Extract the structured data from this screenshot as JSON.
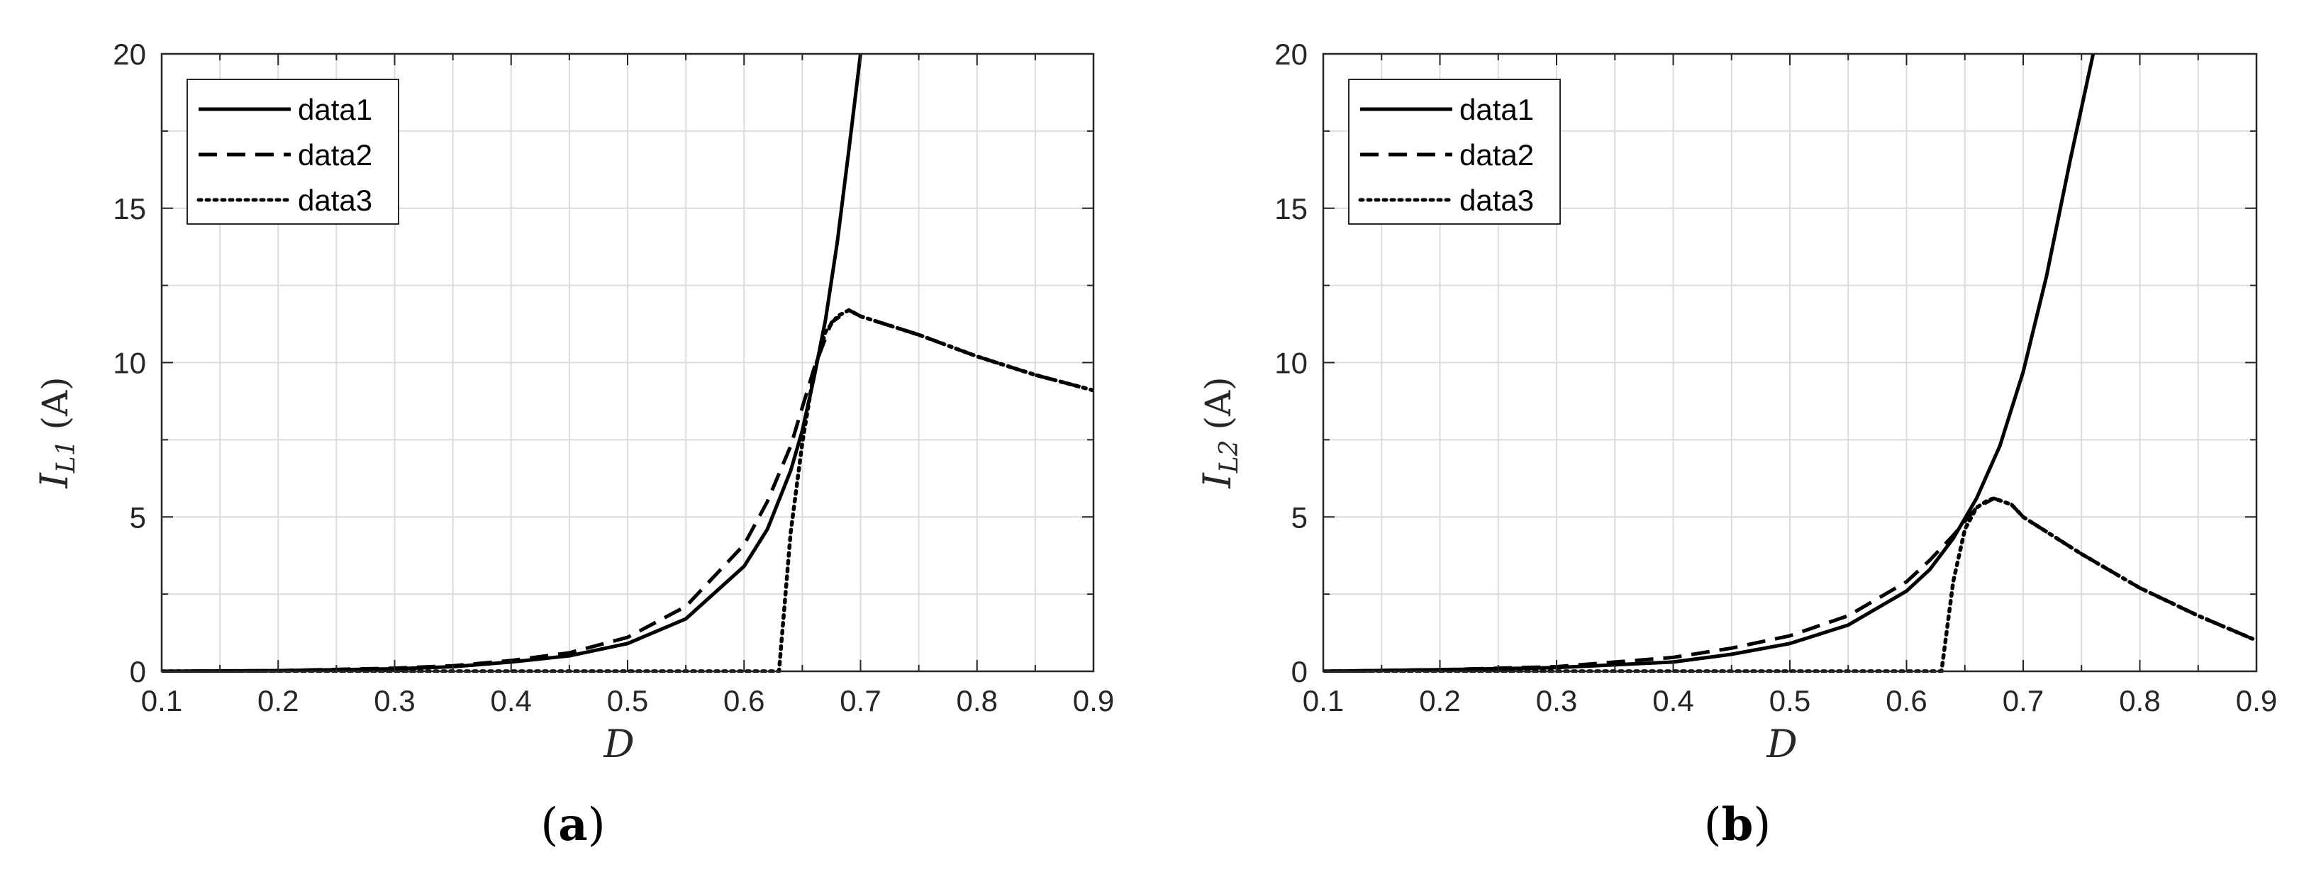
{
  "chart_data": [
    {
      "type": "line",
      "panel_label": "a",
      "xlabel": "D",
      "ylabel_main": "I",
      "ylabel_sub": "L1",
      "ylabel_unit": "(A)",
      "xlim": [
        0.1,
        0.9
      ],
      "ylim": [
        0,
        20
      ],
      "xticks": [
        "0.1",
        "0.2",
        "0.3",
        "0.4",
        "0.5",
        "0.6",
        "0.7",
        "0.8",
        "0.9"
      ],
      "yticks": [
        "0",
        "5",
        "10",
        "15",
        "20"
      ],
      "grid": true,
      "legend_position": "top-left",
      "series": [
        {
          "name": "data1",
          "style": "solid",
          "x": [
            0.1,
            0.2,
            0.3,
            0.35,
            0.4,
            0.45,
            0.5,
            0.55,
            0.6,
            0.62,
            0.64,
            0.65,
            0.66,
            0.67,
            0.68,
            0.69,
            0.7
          ],
          "y": [
            0.0,
            0.02,
            0.08,
            0.15,
            0.3,
            0.5,
            0.9,
            1.7,
            3.4,
            4.6,
            6.5,
            7.8,
            9.5,
            11.4,
            13.9,
            16.9,
            20.0
          ]
        },
        {
          "name": "data2",
          "style": "dashed",
          "x": [
            0.1,
            0.2,
            0.3,
            0.35,
            0.4,
            0.45,
            0.5,
            0.55,
            0.6,
            0.62,
            0.64,
            0.66,
            0.675,
            0.69,
            0.7,
            0.75,
            0.8,
            0.85,
            0.9
          ],
          "y": [
            0.0,
            0.02,
            0.1,
            0.18,
            0.35,
            0.6,
            1.1,
            2.1,
            4.1,
            5.5,
            7.3,
            9.8,
            11.3,
            11.7,
            11.5,
            10.9,
            10.2,
            9.6,
            9.1
          ]
        },
        {
          "name": "data3",
          "style": "dotted",
          "x": [
            0.1,
            0.3,
            0.5,
            0.63,
            0.64,
            0.65,
            0.66,
            0.67,
            0.68,
            0.69,
            0.7,
            0.75,
            0.8,
            0.85,
            0.9
          ],
          "y": [
            0.0,
            0.0,
            0.0,
            0.0,
            4.5,
            7.4,
            9.7,
            11.0,
            11.5,
            11.7,
            11.5,
            10.9,
            10.2,
            9.6,
            9.1
          ]
        }
      ]
    },
    {
      "type": "line",
      "panel_label": "b",
      "xlabel": "D",
      "ylabel_main": "I",
      "ylabel_sub": "L2",
      "ylabel_unit": "(A)",
      "xlim": [
        0.1,
        0.9
      ],
      "ylim": [
        0,
        20
      ],
      "xticks": [
        "0.1",
        "0.2",
        "0.3",
        "0.4",
        "0.5",
        "0.6",
        "0.7",
        "0.8",
        "0.9"
      ],
      "yticks": [
        "0",
        "5",
        "10",
        "15",
        "20"
      ],
      "grid": true,
      "legend_position": "top-left",
      "series": [
        {
          "name": "data1",
          "style": "solid",
          "x": [
            0.1,
            0.2,
            0.3,
            0.4,
            0.45,
            0.5,
            0.55,
            0.6,
            0.62,
            0.64,
            0.66,
            0.68,
            0.7,
            0.72,
            0.74,
            0.76
          ],
          "y": [
            0.0,
            0.05,
            0.12,
            0.3,
            0.55,
            0.9,
            1.5,
            2.6,
            3.3,
            4.3,
            5.6,
            7.3,
            9.7,
            12.8,
            16.5,
            20.0
          ]
        },
        {
          "name": "data2",
          "style": "dashed",
          "x": [
            0.1,
            0.2,
            0.3,
            0.4,
            0.45,
            0.5,
            0.55,
            0.6,
            0.62,
            0.64,
            0.66,
            0.675,
            0.69,
            0.7,
            0.75,
            0.8,
            0.85,
            0.9
          ],
          "y": [
            0.0,
            0.05,
            0.15,
            0.45,
            0.75,
            1.15,
            1.8,
            2.9,
            3.6,
            4.4,
            5.3,
            5.6,
            5.4,
            5.0,
            3.8,
            2.7,
            1.8,
            1.0
          ]
        },
        {
          "name": "data3",
          "style": "dotted",
          "x": [
            0.1,
            0.3,
            0.5,
            0.63,
            0.64,
            0.65,
            0.66,
            0.67,
            0.675,
            0.69,
            0.7,
            0.75,
            0.8,
            0.85,
            0.9
          ],
          "y": [
            0.0,
            0.0,
            0.0,
            0.0,
            2.9,
            4.6,
            5.3,
            5.55,
            5.6,
            5.4,
            5.0,
            3.8,
            2.7,
            1.8,
            1.0
          ]
        }
      ]
    }
  ]
}
